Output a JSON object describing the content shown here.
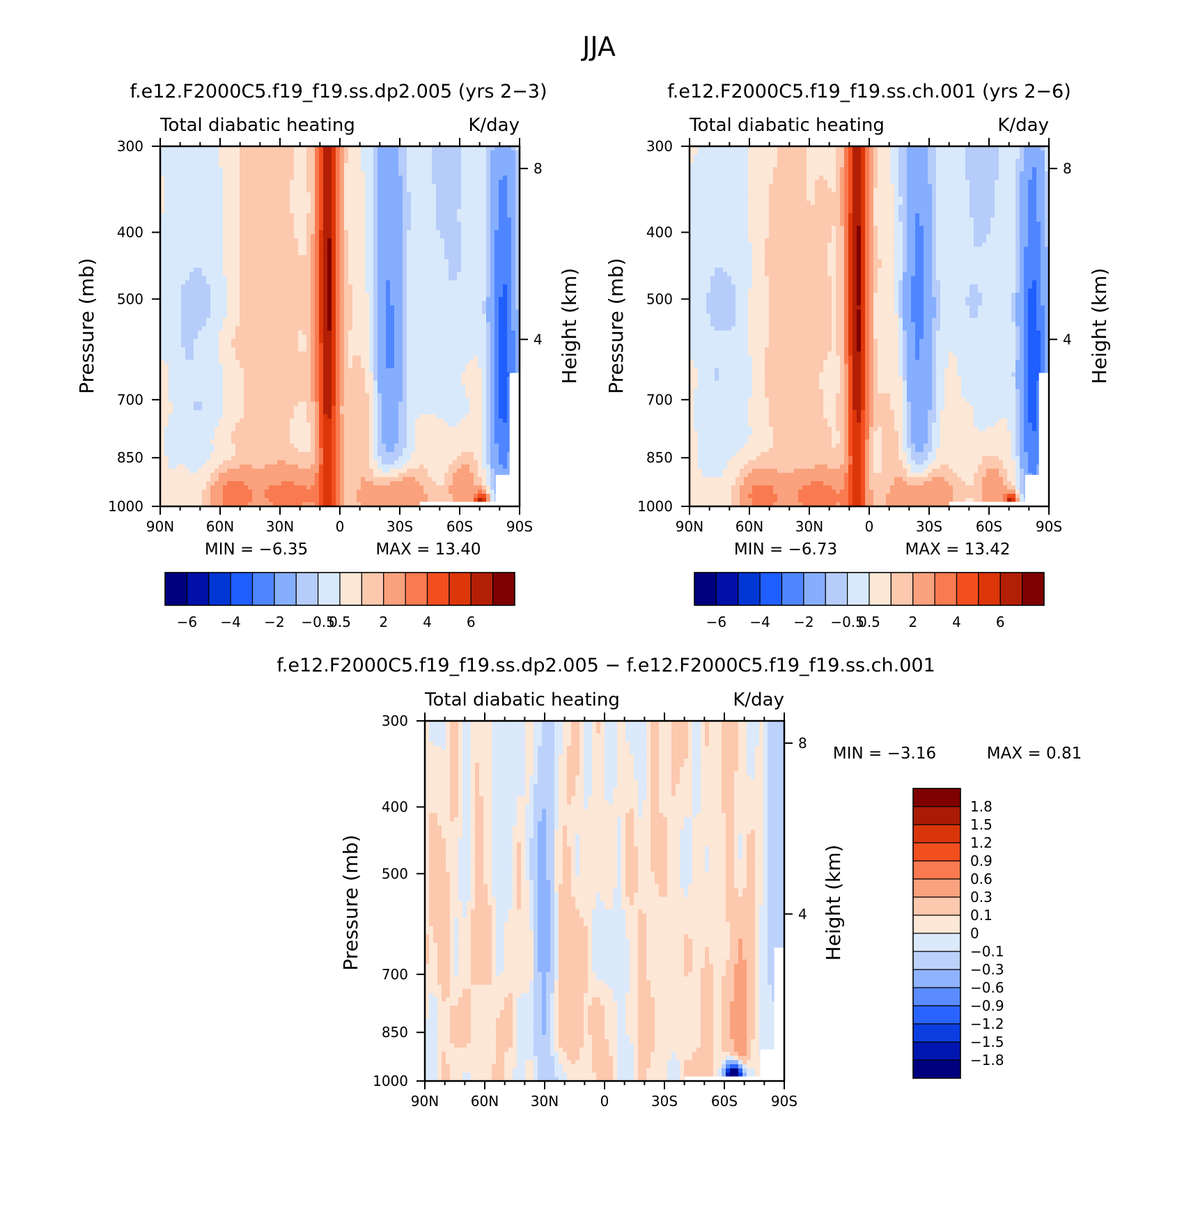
{
  "figure_title": "JJA",
  "chart_data": [
    {
      "type": "heatmap",
      "title": "f.e12.F2000C5.f19_f19.ss.dp2.005 (yrs 2-3)",
      "left_label": "Total diabatic heating",
      "right_label": "K/day",
      "xlabel": "",
      "ylabel": "Pressure (mb)",
      "ylabel_right": "Height (km)",
      "x_tick_labels": [
        "90N",
        "60N",
        "30N",
        "0",
        "30S",
        "60S",
        "90S"
      ],
      "y_tick_labels": [
        "300",
        "400",
        "500",
        "700",
        "850",
        "1000"
      ],
      "y_right_tick_labels": [
        "8",
        "4"
      ],
      "ylim": [
        1000,
        300
      ],
      "min_text": "MIN =   -6.35",
      "max_text": "MAX =   13.40",
      "colorbar_labels": [
        "-6",
        "-4",
        "-2",
        "-0.5",
        "0.5",
        "2",
        "4",
        "6"
      ],
      "features": [
        {
          "lat": 5,
          "p": 600,
          "value": 5.5
        },
        {
          "lat": -25,
          "p": 550,
          "value": -2.5
        },
        {
          "lat": 40,
          "p": 550,
          "value": 0.6
        },
        {
          "lat": -15,
          "p": 650,
          "value": 0.7
        },
        {
          "lat": 70,
          "p": 500,
          "value": -0.8
        },
        {
          "lat": -80,
          "p": 600,
          "value": -3.5
        },
        {
          "lat": -70,
          "p": 950,
          "value": 6.5
        },
        {
          "lat": 55,
          "p": 930,
          "value": 2.0
        }
      ]
    },
    {
      "type": "heatmap",
      "title": "f.e12.F2000C5.f19_f19.ss.ch.001 (yrs 2-6)",
      "left_label": "Total diabatic heating",
      "right_label": "K/day",
      "xlabel": "",
      "ylabel": "Pressure (mb)",
      "ylabel_right": "Height (km)",
      "x_tick_labels": [
        "90N",
        "60N",
        "30N",
        "0",
        "30S",
        "60S",
        "90S"
      ],
      "y_tick_labels": [
        "300",
        "400",
        "500",
        "700",
        "850",
        "1000"
      ],
      "y_right_tick_labels": [
        "8",
        "4"
      ],
      "ylim": [
        1000,
        300
      ],
      "min_text": "MIN =   -6.73",
      "max_text": "MAX =   13.42",
      "colorbar_labels": [
        "-6",
        "-4",
        "-2",
        "-0.5",
        "0.5",
        "2",
        "4",
        "6"
      ],
      "features": [
        {
          "lat": 5,
          "p": 600,
          "value": 5.4
        },
        {
          "lat": -25,
          "p": 550,
          "value": -2.4
        },
        {
          "lat": 40,
          "p": 550,
          "value": 0.6
        },
        {
          "lat": -15,
          "p": 650,
          "value": 0.7
        },
        {
          "lat": 70,
          "p": 500,
          "value": -0.9
        },
        {
          "lat": -80,
          "p": 600,
          "value": -3.6
        },
        {
          "lat": -70,
          "p": 950,
          "value": 6.3
        },
        {
          "lat": 55,
          "p": 930,
          "value": 2.0
        }
      ]
    },
    {
      "type": "heatmap",
      "title": "f.e12.F2000C5.f19_f19.ss.dp2.005 - f.e12.F2000C5.f19_f19.ss.ch.001",
      "left_label": "Total diabatic heating",
      "right_label": "K/day",
      "xlabel": "",
      "ylabel": "Pressure (mb)",
      "ylabel_right": "Height (km)",
      "x_tick_labels": [
        "90N",
        "60N",
        "30N",
        "0",
        "30S",
        "60S",
        "90S"
      ],
      "y_tick_labels": [
        "300",
        "400",
        "500",
        "700",
        "850",
        "1000"
      ],
      "y_right_tick_labels": [
        "8",
        "4"
      ],
      "ylim": [
        1000,
        300
      ],
      "min_text": "MIN =   -3.16",
      "max_text": "MAX =    0.81",
      "colorbar_labels": [
        "1.8",
        "1.5",
        "1.2",
        "0.9",
        "0.6",
        "0.3",
        "0.1",
        "0",
        "-0.1",
        "-0.3",
        "-0.6",
        "-0.9",
        "-1.2",
        "-1.5",
        "-1.8"
      ],
      "features": [
        {
          "lat": 30,
          "p": 600,
          "value": -0.3
        },
        {
          "lat": 20,
          "p": 600,
          "value": 0.15
        },
        {
          "lat": 70,
          "p": 600,
          "value": 0.05
        },
        {
          "lat": -50,
          "p": 600,
          "value": 0.05
        },
        {
          "lat": -65,
          "p": 980,
          "value": -3.0
        },
        {
          "lat": -70,
          "p": 850,
          "value": 0.3
        }
      ]
    }
  ],
  "colors": {
    "levels_main": [
      "#00007f",
      "#0010a8",
      "#0036d4",
      "#1f5eff",
      "#4f86ff",
      "#86aeff",
      "#b6ccfa",
      "#d8e9fb",
      "#fde7d6",
      "#fcc8ae",
      "#faa17d",
      "#f97a50",
      "#f24f1f",
      "#dc3609",
      "#b21f05",
      "#7f0000"
    ],
    "levels_diff": [
      "#00007f",
      "#0016b0",
      "#0a3ee0",
      "#2a64ff",
      "#5a8cff",
      "#8fb3ff",
      "#bcd2fa",
      "#dbe9fb",
      "#fde7d6",
      "#fcc8ae",
      "#faa17d",
      "#f97a50",
      "#f24f1f",
      "#d8360a",
      "#a91b05",
      "#7f0000"
    ]
  }
}
